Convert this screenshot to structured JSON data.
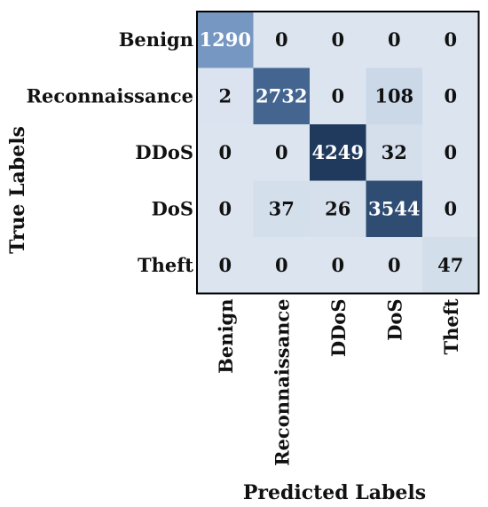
{
  "chart_data": {
    "type": "heatmap",
    "title": "",
    "xlabel": "Predicted Labels",
    "ylabel": "True Labels",
    "rows": [
      "Benign",
      "Reconnaissance",
      "DDoS",
      "DoS",
      "Theft"
    ],
    "columns": [
      "Benign",
      "Reconnaissance",
      "DDoS",
      "DoS",
      "Theft"
    ],
    "values": [
      [
        1290,
        0,
        0,
        0,
        0
      ],
      [
        2,
        2732,
        0,
        108,
        0
      ],
      [
        0,
        0,
        4249,
        32,
        0
      ],
      [
        0,
        37,
        26,
        3544,
        0
      ],
      [
        0,
        0,
        0,
        0,
        47
      ]
    ],
    "colorscale": {
      "low": "#dbe4ef",
      "mid": "#5f86b8",
      "high": "#1f3a5c"
    },
    "grid": false,
    "legend": "none"
  }
}
